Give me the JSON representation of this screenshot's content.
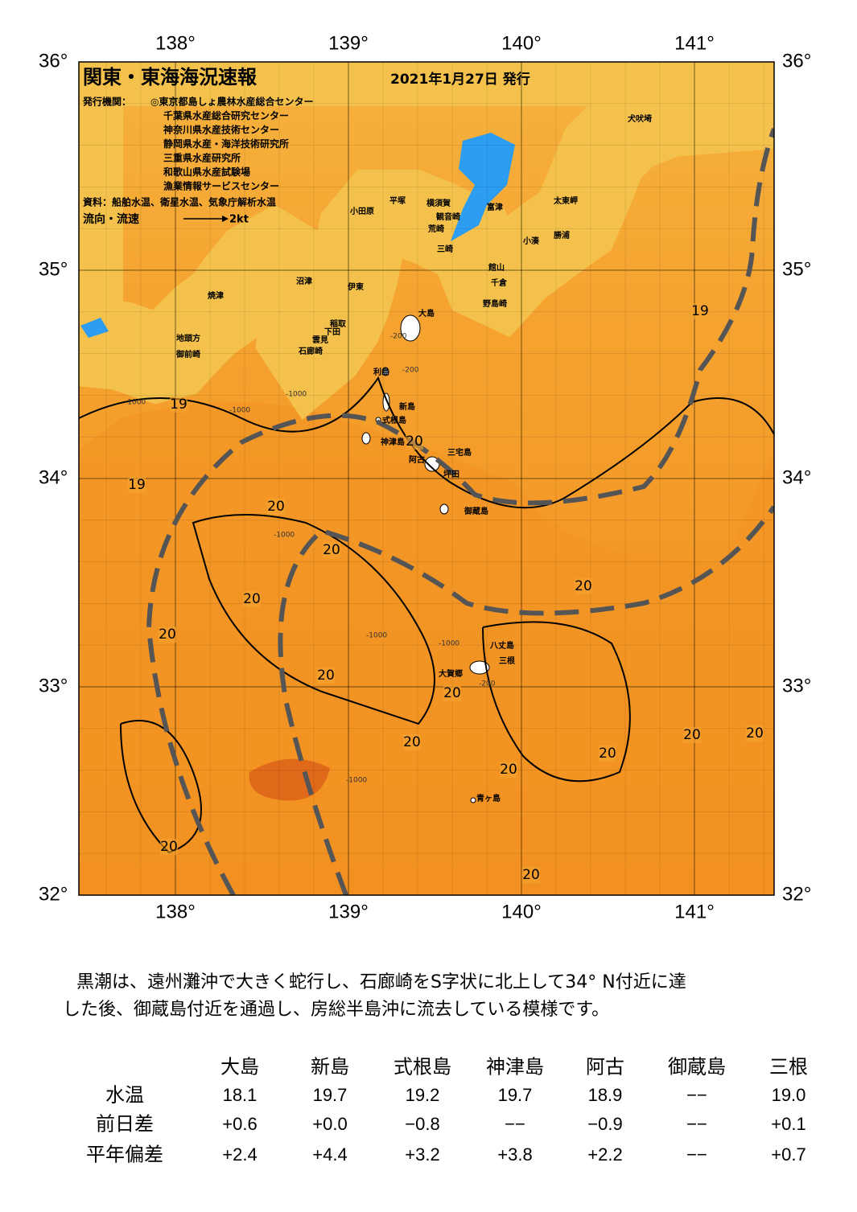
{
  "header": {
    "title": "関東・東海海況速報",
    "date": "2021年1月27日 発行",
    "issuer_label": "発行機関：",
    "issuers": [
      "◎東京都島しょ農林水産総合センター",
      "千葉県水産総合研究センター",
      "神奈川県水産技術センター",
      "静岡県水産・海洋技術研究所",
      "三重県水産研究所",
      "和歌山県水産試験場",
      "漁業情報サービスセンター"
    ],
    "source": "資料：船舶水温、衛星水温、気象庁解析水温",
    "legend_label": "流向・流速",
    "legend_speed": "2kt"
  },
  "map": {
    "lon_ticks": [
      {
        "value": 138,
        "label": "138°"
      },
      {
        "value": 139,
        "label": "139°"
      },
      {
        "value": 140,
        "label": "140°"
      },
      {
        "value": 141,
        "label": "141°"
      }
    ],
    "lat_ticks": [
      {
        "value": 36,
        "label": "36°"
      },
      {
        "value": 35,
        "label": "35°"
      },
      {
        "value": 34,
        "label": "34°"
      },
      {
        "value": 33,
        "label": "33°"
      },
      {
        "value": 32,
        "label": "32°"
      }
    ],
    "places": [
      "犬吠埼",
      "太東岬",
      "勝浦",
      "小湊",
      "富津",
      "横須賀",
      "平塚",
      "小田原",
      "観音崎",
      "荒崎",
      "三崎",
      "館山",
      "千倉",
      "野島崎",
      "沼津",
      "伊東",
      "焼津",
      "大島",
      "稲取",
      "下田",
      "雲見",
      "石廊崎",
      "地頭方",
      "御前崎",
      "利島",
      "新島",
      "式根島",
      "神津島",
      "三宅島",
      "阿古",
      "坪田",
      "御蔵島",
      "八丈島",
      "三根",
      "大賀郷",
      "青ヶ島"
    ],
    "contour_labels": [
      "19",
      "19",
      "19",
      "20",
      "20",
      "20",
      "20",
      "20",
      "20",
      "20",
      "20",
      "20",
      "20",
      "20",
      "20",
      "20",
      "20",
      "20"
    ],
    "depth_labels": [
      "-200",
      "-1000",
      "-200",
      "-1000",
      "-1000",
      "-1000",
      "-1000",
      "-1000",
      "-1000",
      "-200"
    ]
  },
  "description": {
    "lines": [
      "黒潮は、遠州灘沖で大きく蛇行し、石廊崎をS字状に北上して34° N付近に達",
      "した後、御蔵島付近を通過し、房総半島沖に流去している模様です。"
    ]
  },
  "table": {
    "columns": [
      "大島",
      "新島",
      "式根島",
      "神津島",
      "阿古",
      "御蔵島",
      "三根"
    ],
    "rows": [
      {
        "label": "水温",
        "values": [
          "18.1",
          "19.7",
          "19.2",
          "19.7",
          "18.9",
          "−−",
          "19.0"
        ]
      },
      {
        "label": "前日差",
        "values": [
          "+0.6",
          "+0.0",
          "−0.8",
          "−−",
          "−0.9",
          "−−",
          "+0.1"
        ]
      },
      {
        "label": "平年偏差",
        "values": [
          "+2.4",
          "+4.4",
          "+3.2",
          "+3.8",
          "+2.2",
          "−−",
          "+0.7"
        ]
      }
    ]
  }
}
